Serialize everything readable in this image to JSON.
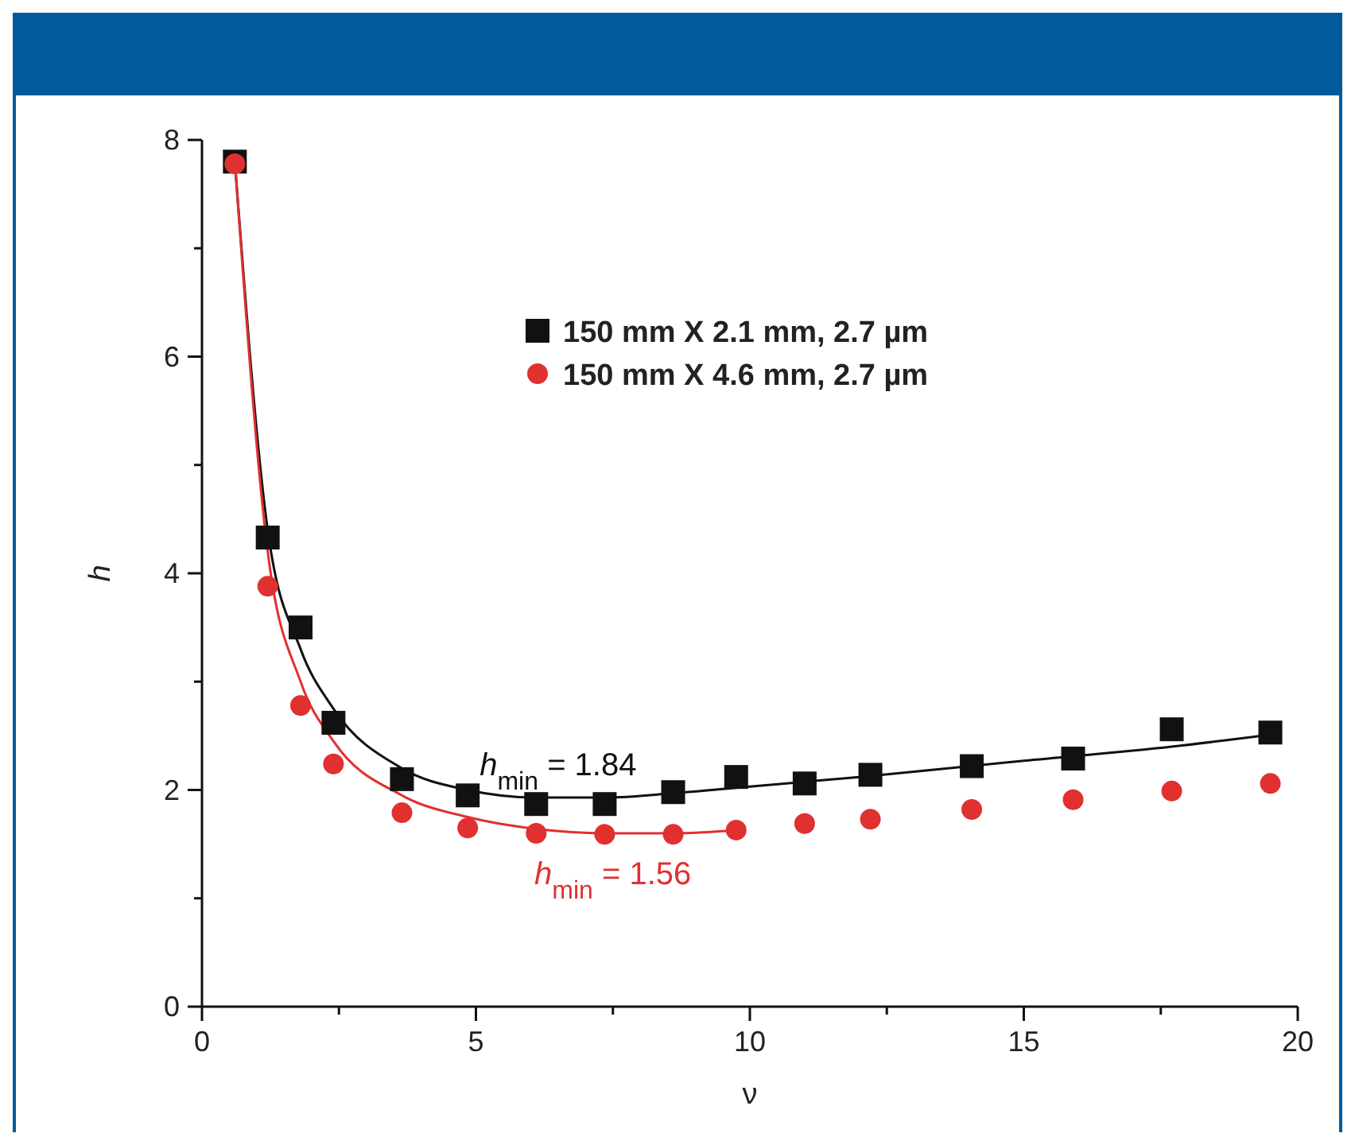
{
  "chart_data": {
    "type": "scatter",
    "xlabel": "ν",
    "ylabel": "h",
    "xlim": [
      0,
      20
    ],
    "ylim": [
      0,
      8
    ],
    "xticks": [
      0,
      {
        "value": 2.5,
        "label": null
      },
      5,
      {
        "value": 7.5,
        "label": null
      },
      10,
      {
        "value": 12.5,
        "label": null
      },
      15,
      {
        "value": 17.5,
        "label": null
      },
      20
    ],
    "yticks": [
      0,
      {
        "value": 1,
        "label": null
      },
      2,
      {
        "value": 3,
        "label": null
      },
      4,
      {
        "value": 5,
        "label": null
      },
      6,
      {
        "value": 7,
        "label": null
      },
      8
    ],
    "grid": false,
    "legend": "top",
    "x": [
      0.6,
      1.2,
      1.8,
      2.4,
      3.65,
      4.85,
      6.1,
      7.35,
      8.6,
      9.75,
      11.0,
      12.2,
      14.05,
      15.9,
      17.7,
      19.5
    ],
    "series": [
      {
        "name": "150 mm X 2.1 mm, 2.7 µm",
        "color": "#111111",
        "marker": "square",
        "values": [
          7.8,
          4.33,
          3.5,
          2.62,
          2.1,
          1.95,
          1.87,
          1.87,
          1.98,
          2.12,
          2.06,
          2.14,
          2.22,
          2.29,
          2.56,
          2.53
        ]
      },
      {
        "name": "150 mm X 4.6 mm, 2.7 µm",
        "color": "#e03030",
        "marker": "circle",
        "values": [
          7.78,
          3.88,
          2.78,
          2.24,
          1.79,
          1.65,
          1.6,
          1.59,
          1.59,
          1.63,
          1.69,
          1.73,
          1.82,
          1.91,
          1.99,
          2.06
        ]
      },
      {
        "type": "line",
        "color": "#111111",
        "marker": "none",
        "x": [
          0.6,
          1.2,
          1.8,
          2.4,
          3.65,
          4.85,
          6.1,
          7.35,
          8.6,
          9.75,
          12,
          15,
          17.7,
          19.5
        ],
        "values": [
          7.8,
          4.4,
          3.3,
          2.75,
          2.2,
          2.0,
          1.93,
          1.93,
          1.97,
          2.02,
          2.12,
          2.27,
          2.4,
          2.51
        ]
      },
      {
        "type": "line",
        "color": "#e03030",
        "marker": "none",
        "x": [
          0.6,
          1.2,
          1.8,
          2.4,
          3.65,
          4.85,
          6.1,
          7.35,
          8.6,
          9.75
        ],
        "values": [
          7.8,
          4.2,
          3.0,
          2.45,
          1.95,
          1.75,
          1.64,
          1.6,
          1.6,
          1.63
        ]
      }
    ],
    "annotations": [
      {
        "text": "h$_{min}$ = 1.84",
        "x": 6.5,
        "y": 1.93
      },
      {
        "text": "h$_{min}$ = 1.56",
        "x": 7.5,
        "y": 1.6
      }
    ]
  }
}
